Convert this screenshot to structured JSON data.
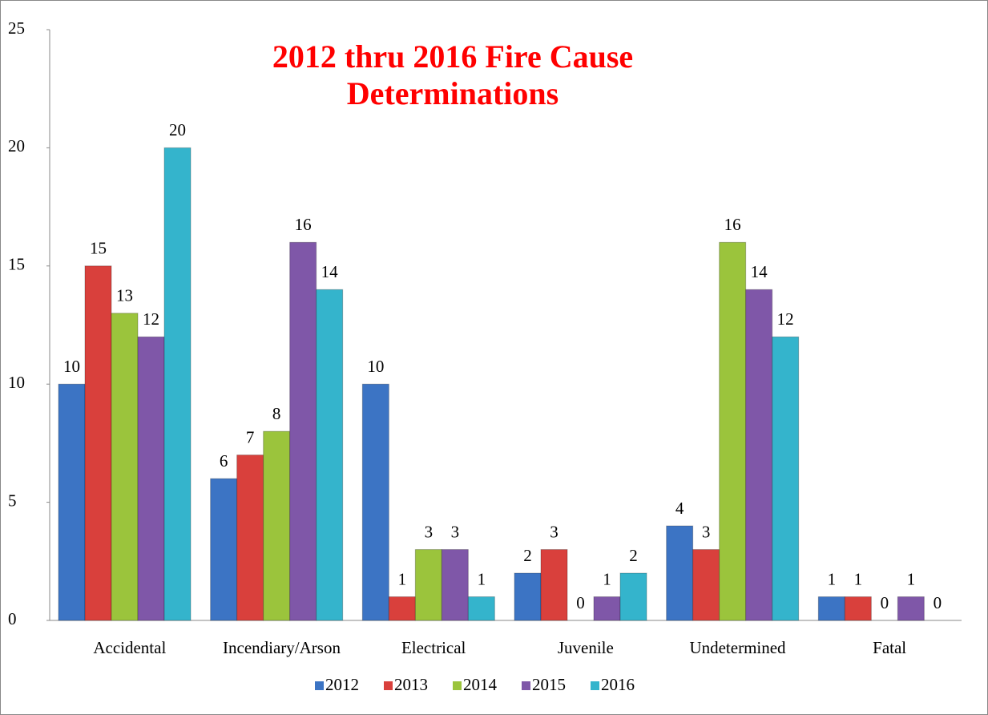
{
  "chart_data": {
    "type": "bar",
    "title": "2012 thru 2016 Fire Cause Determinations",
    "categories": [
      "Accidental",
      "Incendiary/Arson",
      "Electrical",
      "Juvenile",
      "Undetermined",
      "Fatal"
    ],
    "series": [
      {
        "name": "2012",
        "color": "#3c74c4",
        "values": [
          10,
          6,
          10,
          2,
          4,
          1
        ]
      },
      {
        "name": "2013",
        "color": "#d9403c",
        "values": [
          15,
          7,
          1,
          3,
          3,
          1
        ]
      },
      {
        "name": "2014",
        "color": "#9bc43c",
        "values": [
          13,
          8,
          3,
          0,
          16,
          0
        ]
      },
      {
        "name": "2015",
        "color": "#7f57a8",
        "values": [
          12,
          16,
          3,
          1,
          14,
          1
        ]
      },
      {
        "name": "2016",
        "color": "#34b4cc",
        "values": [
          20,
          14,
          1,
          2,
          12,
          0
        ]
      }
    ],
    "ylim": [
      0,
      25
    ],
    "yticks": [
      0,
      5,
      10,
      15,
      20,
      25
    ],
    "grid": false,
    "legend": "bottom"
  }
}
